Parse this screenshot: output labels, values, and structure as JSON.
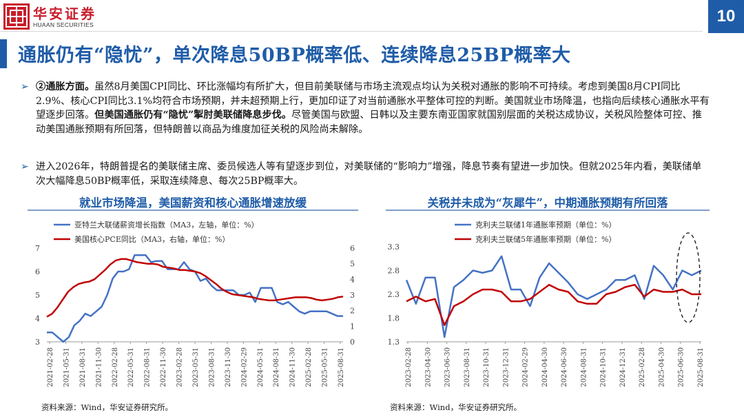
{
  "header": {
    "logo_cn": "华安证券",
    "logo_en": "HUAAN SECURITIES",
    "page_number": "10",
    "title": "通胀仍有“隐忧”，单次降息50BP概率低、连续降息25BP概率大"
  },
  "paragraphs": [
    {
      "lead": "②通胀方面。",
      "text1": "虽然8月美国CPI同比、环比涨幅均有所扩大，但目前美联储与市场主流观点均认为关税对通胀的影响不可持续。考虑到美国8月CPI同比2.9%、核心CPI同比3.1%均符合市场预期，并未超预期上行，更加印证了对当前通胀水平整体可控的判断。美国就业市场降温，也指向后续核心通胀水平有望逐步回落。",
      "emph": "但美国通胀仍有“隐忧”掣肘美联储降息步伐。",
      "text2": "尽管美国与欧盟、日韩以及主要东南亚国家就国别层面的关税达成协议，关税风险整体可控、推动美国通胀预期有所回落，但特朗普以商品为维度加征关税的风险尚未解除。"
    },
    {
      "text": "进入2026年，特朗普提名的美联储主席、委员候选人等有望逐步到位，对美联储的“影响力”增强，降息节奏有望进一步加快。但就2025年内看，美联储单次大幅降息50BP概率低，采取连续降息、每次25BP概率大。"
    }
  ],
  "chart_data": [
    {
      "type": "line",
      "title": "就业市场降温，美国薪资和核心通胀增速放缓",
      "x_ticks": [
        "2021-02-28",
        "2021-05-31",
        "2021-08-31",
        "2021-11-30",
        "2022-02-28",
        "2022-05-31",
        "2022-08-31",
        "2022-11-30",
        "2023-02-28",
        "2023-05-31",
        "2023-08-31",
        "2023-11-30",
        "2024-02-29",
        "2024-05-31",
        "2024-08-31",
        "2024-11-30",
        "2025-02-28",
        "2025-05-31",
        "2025-08-31"
      ],
      "y_left": {
        "min": 3,
        "max": 7,
        "ticks": [
          "3",
          "4",
          "5",
          "6",
          "7"
        ]
      },
      "y_right": {
        "min": 0,
        "max": 6,
        "ticks": [
          "0",
          "1",
          "2",
          "3",
          "4",
          "5",
          "6"
        ]
      },
      "series": [
        {
          "name": "亚特兰大联储薪资增长指数（MA3，左轴，单位：%）",
          "axis": "left",
          "color": "#4472c4",
          "values": [
            3.4,
            3.4,
            3.2,
            3.0,
            3.2,
            3.7,
            3.9,
            4.2,
            4.1,
            4.3,
            4.5,
            5.0,
            5.7,
            6.0,
            6.0,
            6.1,
            6.7,
            6.7,
            6.7,
            6.4,
            6.45,
            6.45,
            6.1,
            6.1,
            6.1,
            6.4,
            6.1,
            6.0,
            5.6,
            5.7,
            5.4,
            5.2,
            5.2,
            5.2,
            5.2,
            5.0,
            5.0,
            5.1,
            4.7,
            5.3,
            5.3,
            5.3,
            4.7,
            4.6,
            4.7,
            4.5,
            4.3,
            4.2,
            4.3,
            4.3,
            4.3,
            4.3,
            4.2,
            4.1,
            4.1
          ]
        },
        {
          "name": "美国核心PCE同比（MA3，右轴，单位：%）",
          "axis": "right",
          "color": "#c00000",
          "values": [
            1.6,
            1.8,
            2.2,
            2.7,
            3.2,
            3.5,
            3.7,
            3.8,
            3.85,
            4.0,
            4.3,
            4.6,
            4.95,
            5.2,
            5.3,
            5.3,
            5.2,
            5.1,
            5.05,
            5.0,
            5.0,
            4.95,
            4.8,
            4.75,
            4.7,
            4.6,
            4.6,
            4.55,
            4.5,
            4.4,
            4.2,
            3.95,
            3.7,
            3.4,
            3.2,
            3.05,
            3.0,
            2.95,
            2.9,
            2.85,
            2.75,
            2.7,
            2.65,
            2.65,
            2.7,
            2.75,
            2.8,
            2.85,
            2.85,
            2.85,
            2.8,
            2.7,
            2.65,
            2.7,
            2.75,
            2.85,
            2.9
          ]
        }
      ],
      "source": "资料来源：Wind，华安证券研究所。"
    },
    {
      "type": "line",
      "title": "关税并未成为“灰犀牛”，中期通胀预期有所回落",
      "x_ticks": [
        "2023-02-28",
        "2023-04-30",
        "2023-06-30",
        "2023-08-31",
        "2023-10-31",
        "2023-12-31",
        "2024-02-29",
        "2024-04-30",
        "2024-06-30",
        "2024-08-31",
        "2024-10-31",
        "2024-12-31",
        "2025-02-28",
        "2025-04-30",
        "2025-06-30",
        "2025-08-31"
      ],
      "y": {
        "min": 1.3,
        "max": 3.3,
        "ticks": [
          "1.3",
          "1.8",
          "2.3",
          "2.8",
          "3.3"
        ]
      },
      "series": [
        {
          "name": "克利夫兰联储1年通胀率预期（单位：%）",
          "color": "#4472c4",
          "values": [
            2.6,
            2.1,
            2.65,
            2.65,
            1.4,
            2.45,
            2.6,
            2.8,
            2.75,
            2.8,
            3.1,
            2.4,
            2.4,
            2.05,
            2.65,
            2.95,
            2.75,
            2.55,
            2.3,
            2.2,
            2.3,
            2.4,
            2.6,
            2.6,
            2.7,
            2.2,
            2.9,
            2.7,
            2.4,
            2.8,
            2.7,
            2.8
          ]
        },
        {
          "name": "克利夫兰联储5年通胀率预期（单位：%）",
          "color": "#c00000",
          "values": [
            2.15,
            2.25,
            2.15,
            2.2,
            1.65,
            2.05,
            2.15,
            2.3,
            2.4,
            2.4,
            2.35,
            2.15,
            2.15,
            2.2,
            2.35,
            2.5,
            2.4,
            2.35,
            2.15,
            2.1,
            2.1,
            2.3,
            2.35,
            2.45,
            2.5,
            2.25,
            2.4,
            2.35,
            2.35,
            2.4,
            2.3,
            2.3
          ]
        }
      ],
      "highlight": "dashed-ellipse-latest",
      "source": "资料来源：Wind，华安证券研究所。"
    }
  ]
}
